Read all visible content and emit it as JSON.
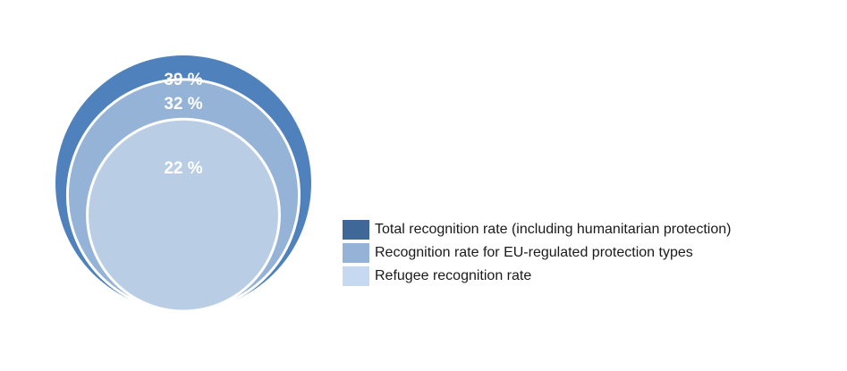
{
  "chart_data": {
    "type": "nested-circles",
    "series": [
      {
        "name": "Total recognition rate (including humanitarian protection)",
        "value": 39,
        "label": "39 %",
        "color": "#4f81bd",
        "legend_color": "#3f6797"
      },
      {
        "name": "Recognition rate for EU-regulated protection types",
        "value": 32,
        "label": "32 %",
        "color": "#95b3d7",
        "legend_color": "#95b3d7"
      },
      {
        "name": "Refugee recognition rate",
        "value": 22,
        "label": "22 %",
        "color": "#b9cde5",
        "legend_color": "#c6d9f1"
      }
    ]
  }
}
